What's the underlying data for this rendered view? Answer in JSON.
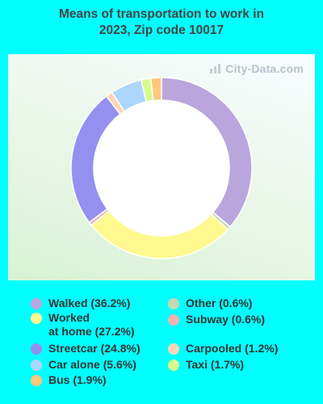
{
  "title": {
    "line1": "Means of transportation to work in",
    "line2": "2023, Zip code 10017"
  },
  "watermark": "City-Data.com",
  "chart_data": {
    "type": "pie",
    "style": "donut",
    "title": "Means of transportation to work in 2023, Zip code 10017",
    "legend_position": "bottom",
    "slices": [
      {
        "label": "Walked",
        "value": 36.2,
        "color": "#b9a6dc"
      },
      {
        "label": "Other",
        "value": 0.6,
        "color": "#c5d9b2"
      },
      {
        "label": "Worked at home",
        "value": 27.2,
        "color": "#fff98f"
      },
      {
        "label": "Subway",
        "value": 0.6,
        "color": "#f0b3b3"
      },
      {
        "label": "Streetcar",
        "value": 24.8,
        "color": "#9590ef"
      },
      {
        "label": "Carpooled",
        "value": 1.2,
        "color": "#fbd7b5"
      },
      {
        "label": "Car alone",
        "value": 5.6,
        "color": "#acd6fb"
      },
      {
        "label": "Taxi",
        "value": 1.7,
        "color": "#d7fb8e"
      },
      {
        "label": "Bus",
        "value": 1.9,
        "color": "#fdc97a"
      }
    ]
  },
  "legend": {
    "left": [
      {
        "lines": [
          "Walked (36.2%)"
        ],
        "color": "#b9a6dc"
      },
      {
        "lines": [
          "Worked",
          "at home (27.2%)"
        ],
        "color": "#fff98f"
      },
      {
        "lines": [
          "Streetcar (24.8%)"
        ],
        "color": "#9590ef"
      },
      {
        "lines": [
          "Car alone (5.6%)"
        ],
        "color": "#acd6fb"
      },
      {
        "lines": [
          "Bus (1.9%)"
        ],
        "color": "#fdc97a"
      }
    ],
    "right": [
      {
        "lines": [
          "Other (0.6%)"
        ],
        "color": "#c5d9b2"
      },
      {
        "lines": [
          "Subway (0.6%)"
        ],
        "color": "#f0b3b3"
      },
      {
        "lines": [
          "Carpooled (1.2%)"
        ],
        "color": "#fbd7b5"
      },
      {
        "lines": [
          "Taxi (1.7%)"
        ],
        "color": "#d7fb8e"
      }
    ]
  }
}
